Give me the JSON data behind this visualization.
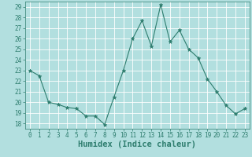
{
  "xlabel": "Humidex (Indice chaleur)",
  "x": [
    0,
    1,
    2,
    3,
    4,
    5,
    6,
    7,
    8,
    9,
    10,
    11,
    12,
    13,
    14,
    15,
    16,
    17,
    18,
    19,
    20,
    21,
    22,
    23
  ],
  "y": [
    23,
    22.5,
    20,
    19.8,
    19.5,
    19.4,
    18.7,
    18.7,
    17.9,
    20.5,
    23,
    26,
    27.7,
    25.3,
    29.2,
    25.7,
    26.8,
    25,
    24.2,
    22.2,
    21,
    19.7,
    18.9,
    19.4
  ],
  "line_color": "#2e7d6e",
  "marker": "*",
  "marker_size": 3.5,
  "bg_color": "#b2dfdf",
  "grid_color": "#ffffff",
  "ylim_min": 17.5,
  "ylim_max": 29.5,
  "yticks": [
    18,
    19,
    20,
    21,
    22,
    23,
    24,
    25,
    26,
    27,
    28,
    29
  ],
  "xticks": [
    0,
    1,
    2,
    3,
    4,
    5,
    6,
    7,
    8,
    9,
    10,
    11,
    12,
    13,
    14,
    15,
    16,
    17,
    18,
    19,
    20,
    21,
    22,
    23
  ],
  "tick_label_fontsize": 5.5,
  "xlabel_fontsize": 7.5,
  "label_color": "#2e7d6e",
  "linewidth": 0.8
}
